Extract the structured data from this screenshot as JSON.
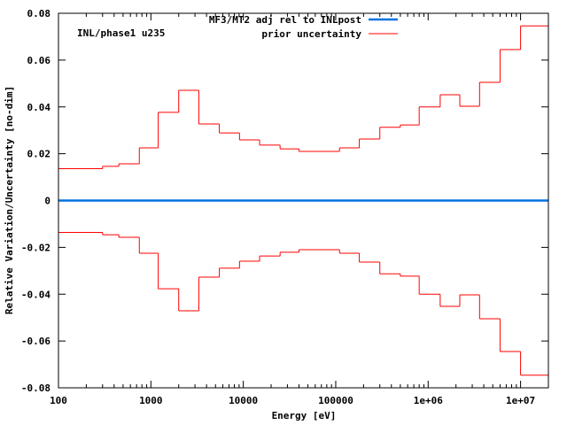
{
  "chart_data": {
    "type": "line",
    "title": "",
    "annotation": "INL/phase1 u235",
    "xlabel": "Energy [eV]",
    "ylabel": "Relative Variation/Uncertainty [no-dim]",
    "xscale": "log",
    "xlim": [
      100,
      20000000
    ],
    "ylim": [
      -0.08,
      0.08
    ],
    "grid": false,
    "legend_position": "top-center",
    "x_tick_labels": [
      "100",
      "1000",
      "10000",
      "100000",
      "1e+06",
      "1e+07"
    ],
    "x_tick_values": [
      100,
      1000,
      10000,
      100000,
      1000000,
      10000000
    ],
    "y_tick_labels": [
      "-0.08",
      "-0.06",
      "-0.04",
      "-0.02",
      "0",
      "0.02",
      "0.04",
      "0.06",
      "0.08"
    ],
    "y_tick_values": [
      -0.08,
      -0.06,
      -0.04,
      -0.02,
      0,
      0.02,
      0.04,
      0.06,
      0.08
    ],
    "group_edges": [
      100,
      300,
      450,
      750,
      1200,
      2000,
      3300,
      5500,
      9100,
      15000,
      25000,
      40000,
      110000,
      180000,
      300000,
      500000,
      800000,
      1350000,
      2200000,
      3600000,
      6000000,
      10000000,
      20000000
    ],
    "series": [
      {
        "name": "MF3/MT2 adj rel to INLpost",
        "color": "#0072e0",
        "style": "line",
        "values": [
          0,
          0,
          0,
          0,
          0,
          0,
          0,
          0,
          0,
          0,
          0,
          0,
          0,
          0,
          0,
          0,
          0,
          0,
          0,
          0,
          0,
          0
        ]
      },
      {
        "name": "prior uncertainty",
        "color": "#ff0000",
        "style": "steps",
        "upper": [
          0.0136,
          0.0146,
          0.0157,
          0.0225,
          0.0377,
          0.0471,
          0.0327,
          0.0289,
          0.0259,
          0.0237,
          0.0221,
          0.021,
          0.0225,
          0.0263,
          0.0313,
          0.0323,
          0.04,
          0.0452,
          0.0403,
          0.0505,
          0.0645,
          0.0746
        ],
        "lower": [
          -0.0136,
          -0.0146,
          -0.0157,
          -0.0225,
          -0.0377,
          -0.0471,
          -0.0327,
          -0.0289,
          -0.0259,
          -0.0237,
          -0.0221,
          -0.021,
          -0.0225,
          -0.0263,
          -0.0313,
          -0.0323,
          -0.04,
          -0.0452,
          -0.0403,
          -0.0505,
          -0.0645,
          -0.0746
        ]
      }
    ]
  }
}
